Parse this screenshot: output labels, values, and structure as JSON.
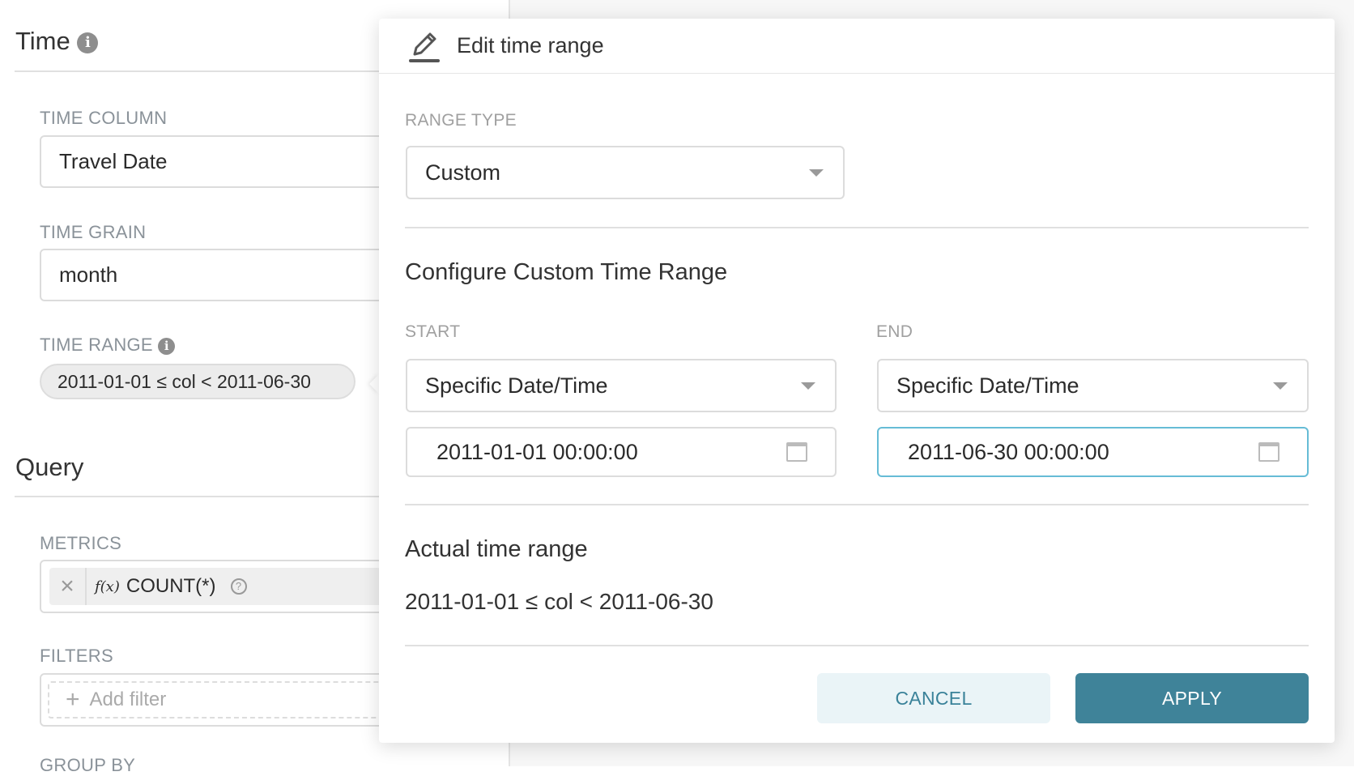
{
  "left_panel": {
    "time_section": {
      "title": "Time",
      "info_icon": "info-icon"
    },
    "time_column": {
      "label": "TIME COLUMN",
      "value": "Travel Date"
    },
    "time_grain": {
      "label": "TIME GRAIN",
      "value": "month"
    },
    "time_range": {
      "label": "TIME RANGE",
      "value": "2011-01-01 ≤ col < 2011-06-30"
    },
    "query_section": {
      "title": "Query"
    },
    "metrics": {
      "label": "METRICS",
      "fx": "f(x)",
      "value": "COUNT(*)",
      "remove": "×",
      "help": "?"
    },
    "filters": {
      "label": "FILTERS",
      "placeholder": "Add filter",
      "plus": "+"
    },
    "group_by": {
      "label": "GROUP BY"
    }
  },
  "popover": {
    "title": "Edit time range",
    "range_type": {
      "label": "RANGE TYPE",
      "value": "Custom"
    },
    "custom_heading": "Configure Custom Time Range",
    "start": {
      "label": "START",
      "mode": "Specific Date/Time",
      "value": "2011-01-01 00:00:00"
    },
    "end": {
      "label": "END",
      "mode": "Specific Date/Time",
      "value": "2011-06-30 00:00:00"
    },
    "actual": {
      "heading": "Actual time range",
      "value": "2011-01-01 ≤ col < 2011-06-30"
    },
    "cancel_label": "CANCEL",
    "apply_label": "APPLY"
  },
  "colors": {
    "primary": "#3f8399",
    "cancel_bg": "#eaf4f7",
    "focus_border": "#66bcd6"
  }
}
